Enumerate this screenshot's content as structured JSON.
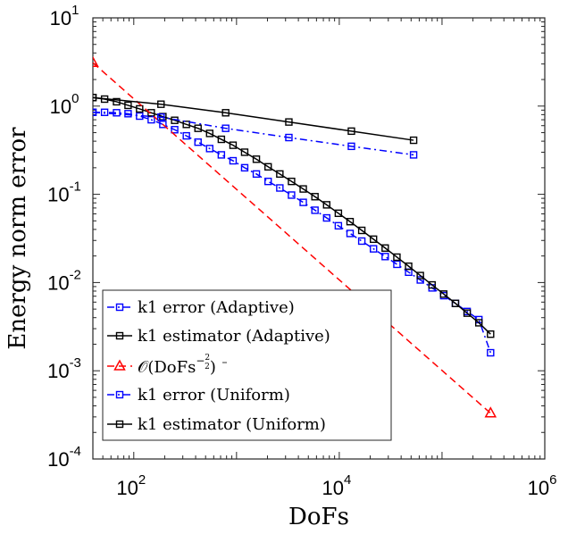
{
  "chart_data": {
    "type": "line",
    "xscale": "log",
    "yscale": "log",
    "xlim": [
      40,
      1000000
    ],
    "ylim": [
      0.0001,
      10
    ],
    "xlabel": "DoFs",
    "ylabel": "Energy norm error",
    "x_ticks": [
      {
        "value": 100,
        "base": "10",
        "exp": "2"
      },
      {
        "value": 10000,
        "base": "10",
        "exp": "4"
      },
      {
        "value": 1000000,
        "base": "10",
        "exp": "6"
      }
    ],
    "y_ticks": [
      {
        "value": 10,
        "base": "10",
        "exp": "1"
      },
      {
        "value": 1,
        "base": "10",
        "exp": "0"
      },
      {
        "value": 0.1,
        "base": "10",
        "exp": "-1"
      },
      {
        "value": 0.01,
        "base": "10",
        "exp": "-2"
      },
      {
        "value": 0.001,
        "base": "10",
        "exp": "-3"
      },
      {
        "value": 0.0001,
        "base": "10",
        "exp": "-4"
      }
    ],
    "legend_position": "bottom-left",
    "series": [
      {
        "name": "k1 error (Adaptive)",
        "color": "#0000ff",
        "dash": "dashdot",
        "marker": "square",
        "x": [
          40,
          52,
          68,
          88,
          114,
          148,
          192,
          250,
          325,
          422,
          548,
          712,
          925,
          1200,
          1560,
          2030,
          2640,
          3430,
          4460,
          5800,
          7540,
          9800,
          12740,
          16560,
          21530,
          27990,
          36390,
          47300,
          61500,
          79950,
          103900,
          135100,
          175600,
          228300,
          296800
        ],
        "y": [
          0.85,
          0.85,
          0.84,
          0.82,
          0.77,
          0.7,
          0.62,
          0.54,
          0.46,
          0.39,
          0.33,
          0.28,
          0.24,
          0.2,
          0.17,
          0.14,
          0.118,
          0.098,
          0.081,
          0.066,
          0.054,
          0.044,
          0.036,
          0.0295,
          0.0241,
          0.0197,
          0.0161,
          0.0131,
          0.0107,
          0.0087,
          0.0071,
          0.0058,
          0.0047,
          0.0038,
          0.0016
        ]
      },
      {
        "name": "k1 estimator (Adaptive)",
        "color": "#000000",
        "dash": "solid",
        "marker": "square",
        "x": [
          40,
          52,
          68,
          88,
          114,
          148,
          192,
          250,
          325,
          422,
          548,
          712,
          925,
          1200,
          1560,
          2030,
          2640,
          3430,
          4460,
          5800,
          7540,
          9800,
          12740,
          16560,
          21530,
          27990,
          36390,
          47300,
          61500,
          79950,
          103900,
          135100,
          175600,
          228300,
          296800
        ],
        "y": [
          1.25,
          1.2,
          1.12,
          1.02,
          0.93,
          0.84,
          0.76,
          0.69,
          0.62,
          0.56,
          0.49,
          0.42,
          0.36,
          0.3,
          0.25,
          0.205,
          0.17,
          0.14,
          0.115,
          0.094,
          0.076,
          0.061,
          0.049,
          0.039,
          0.031,
          0.0246,
          0.0194,
          0.0153,
          0.012,
          0.0094,
          0.0074,
          0.0058,
          0.0045,
          0.0035,
          0.0026
        ]
      },
      {
        "name": "O(DoFs^(-2/2))",
        "color": "#ff0000",
        "dash": "dashed",
        "marker": "triangle",
        "x": [
          40,
          296800
        ],
        "y": [
          3.1,
          0.00033
        ]
      },
      {
        "name": "k1 error (Uniform)",
        "color": "#0000ff",
        "dash": "dashdot",
        "marker": "square",
        "x": [
          40,
          184,
          784,
          3232,
          13120,
          52864
        ],
        "y": [
          0.85,
          0.75,
          0.56,
          0.44,
          0.35,
          0.28
        ]
      },
      {
        "name": "k1 estimator (Uniform)",
        "color": "#000000",
        "dash": "solid",
        "marker": "square",
        "x": [
          40,
          184,
          784,
          3232,
          13120,
          52864
        ],
        "y": [
          1.25,
          1.05,
          0.84,
          0.66,
          0.52,
          0.41
        ]
      }
    ]
  },
  "legend": {
    "items": [
      {
        "label": "k1 error (Adaptive)"
      },
      {
        "label": "k1 estimator (Adaptive)"
      },
      {
        "label_prefix": "𝒪(DoFs",
        "label_sup": "−",
        "label_frac_num": "2",
        "label_frac_den": "2",
        "label_suffix": ")"
      },
      {
        "label": "k1 error (Uniform)"
      },
      {
        "label": "k1 estimator (Uniform)"
      }
    ]
  }
}
